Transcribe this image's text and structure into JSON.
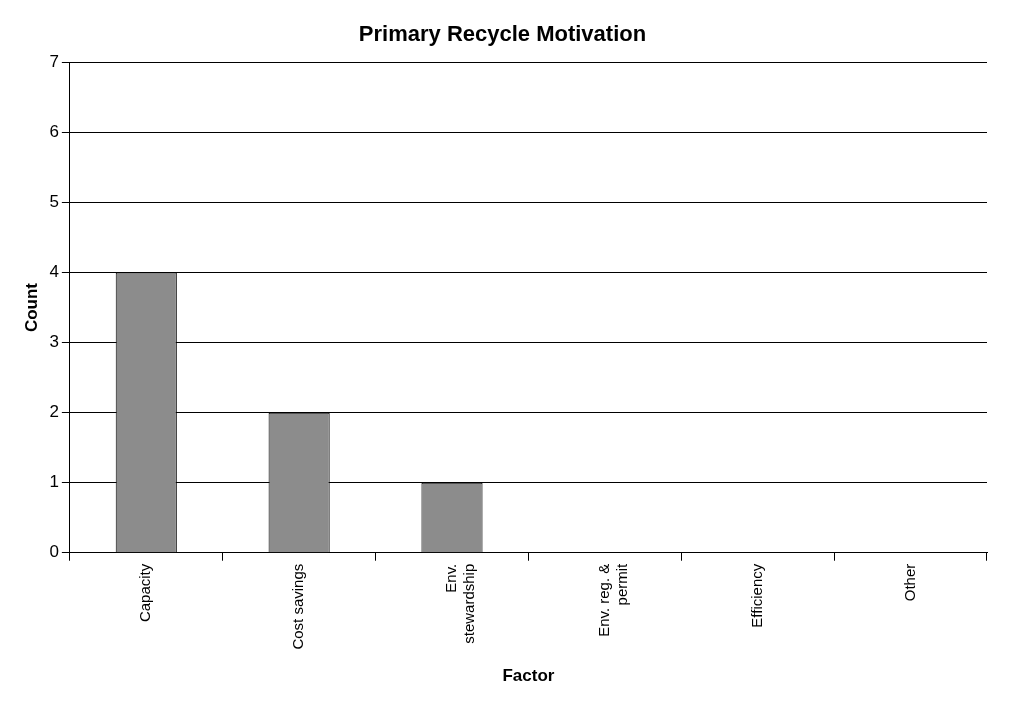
{
  "chart_data": {
    "type": "bar",
    "title": "Primary Recycle Motivation",
    "xlabel": "Factor",
    "ylabel": "Count",
    "categories": [
      "Capacity",
      "Cost savings",
      "Env. stewardship",
      "Env. reg. & permit",
      "Efficiency",
      "Other"
    ],
    "values": [
      4,
      2,
      1,
      0,
      0,
      0
    ],
    "color": "#8c8c8c",
    "ylim": [
      0,
      7
    ],
    "yticks": [
      0,
      1,
      2,
      3,
      4,
      5,
      6,
      7
    ],
    "grid": "y",
    "legend": false
  }
}
